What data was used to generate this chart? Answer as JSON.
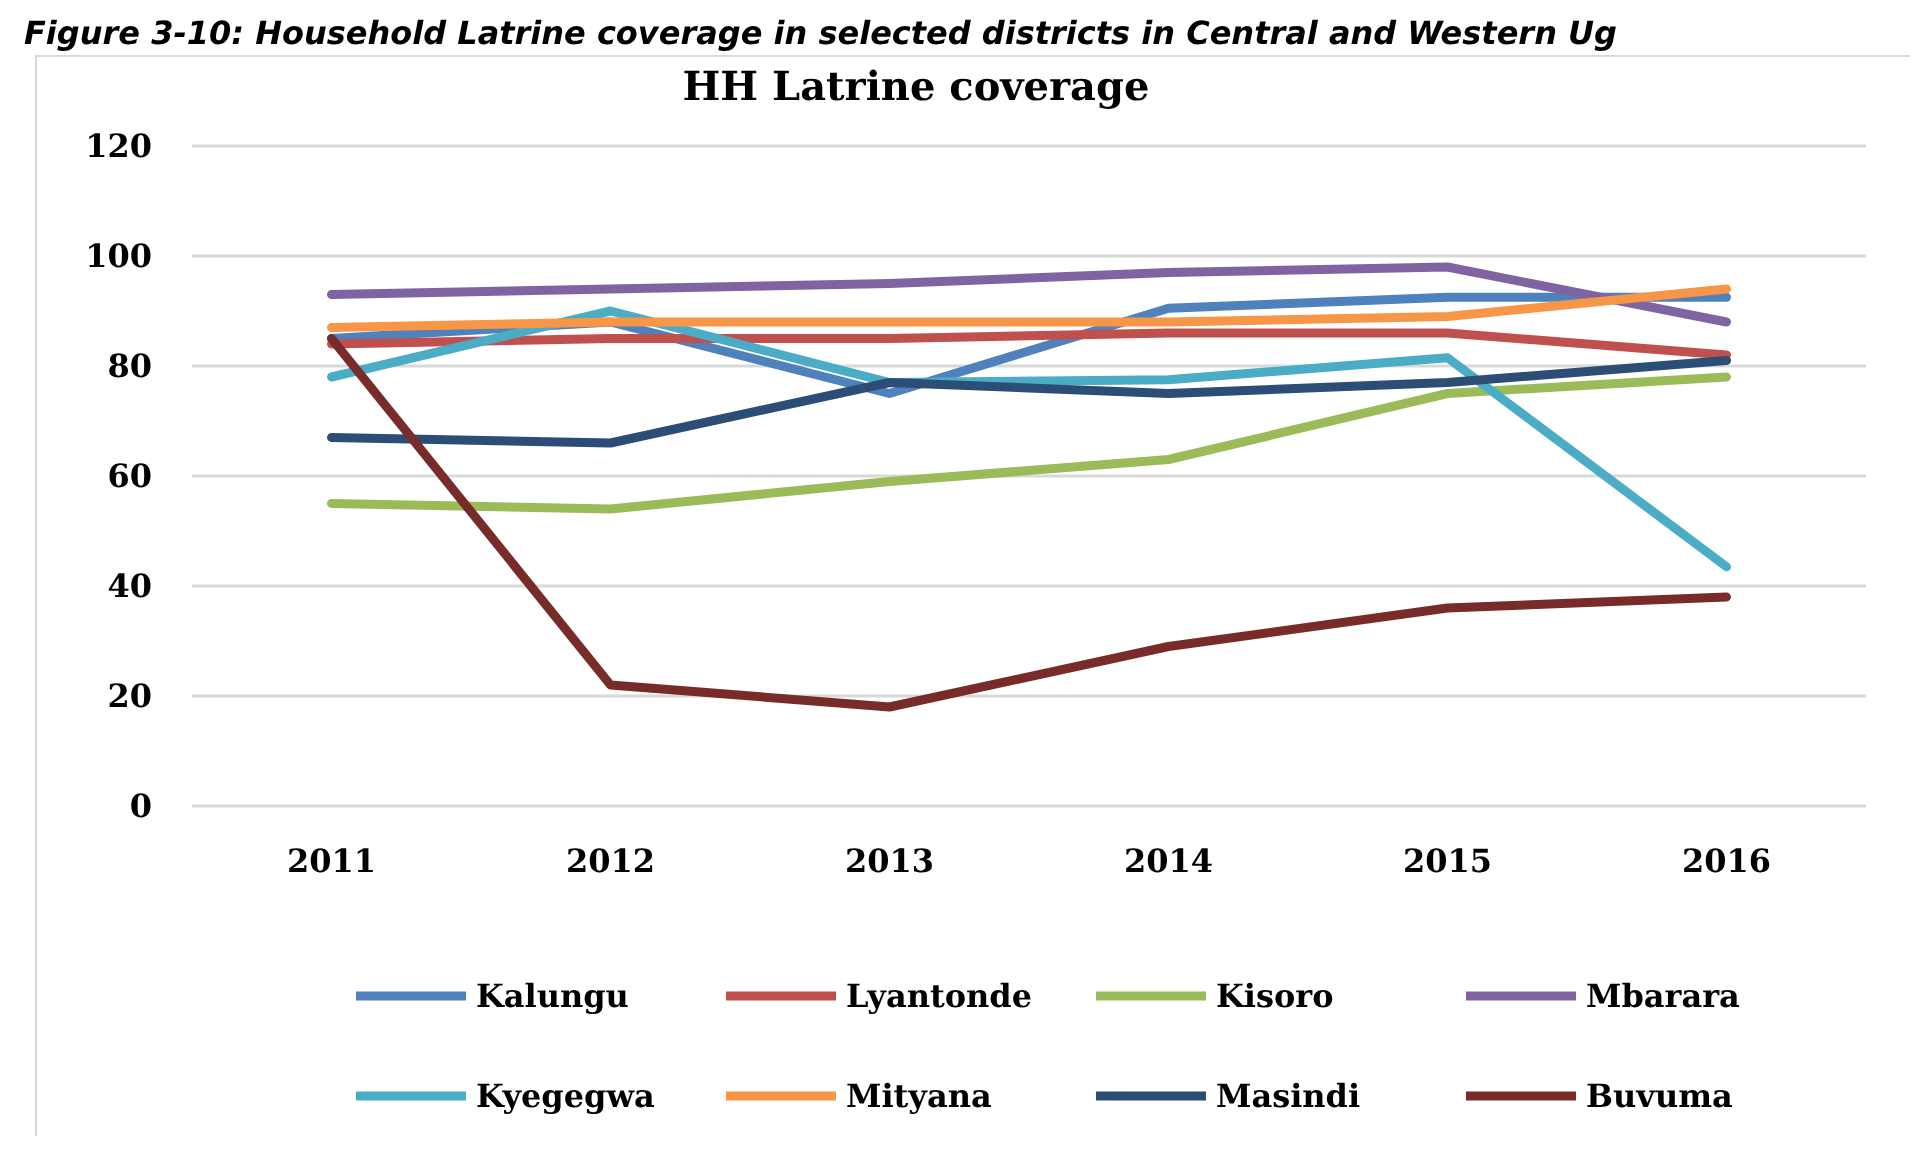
{
  "chart_data": {
    "type": "line",
    "title": "HH Latrine coverage",
    "annotations": [
      "Figure 3-10: Household Latrine coverage in selected districts in Central and Western Ug"
    ],
    "categories": [
      "2011",
      "2012",
      "2013",
      "2014",
      "2015",
      "2016"
    ],
    "ylim": [
      0,
      120
    ],
    "yticks": [
      0,
      20,
      40,
      60,
      80,
      100,
      120
    ],
    "grid": "y",
    "legend": "bottom",
    "marker": "none",
    "line_style": "solid",
    "series": [
      {
        "name": "Kalungu",
        "color": "#4f81bd",
        "values": [
          85,
          88,
          75,
          90.5,
          92.5,
          92.5
        ]
      },
      {
        "name": "Lyantonde",
        "color": "#c0504d",
        "values": [
          84,
          85,
          85,
          86,
          86,
          82
        ]
      },
      {
        "name": "Kisoro",
        "color": "#9bbb59",
        "values": [
          55,
          54,
          59,
          63,
          75,
          78
        ]
      },
      {
        "name": "Mbarara",
        "color": "#8064a2",
        "values": [
          93,
          94,
          95,
          97,
          98,
          88
        ]
      },
      {
        "name": "Kyegegwa",
        "color": "#4bacc6",
        "values": [
          78,
          90,
          77,
          77.5,
          81.5,
          43.5
        ]
      },
      {
        "name": "Mityana",
        "color": "#f79646",
        "values": [
          87,
          88,
          88,
          88,
          89,
          94
        ]
      },
      {
        "name": "Masindi",
        "color": "#2c4d75",
        "values": [
          67,
          66,
          77,
          75,
          77,
          81
        ]
      },
      {
        "name": "Buvuma",
        "color": "#772c2a",
        "values": [
          85,
          22,
          18,
          29,
          36,
          38
        ]
      }
    ]
  }
}
